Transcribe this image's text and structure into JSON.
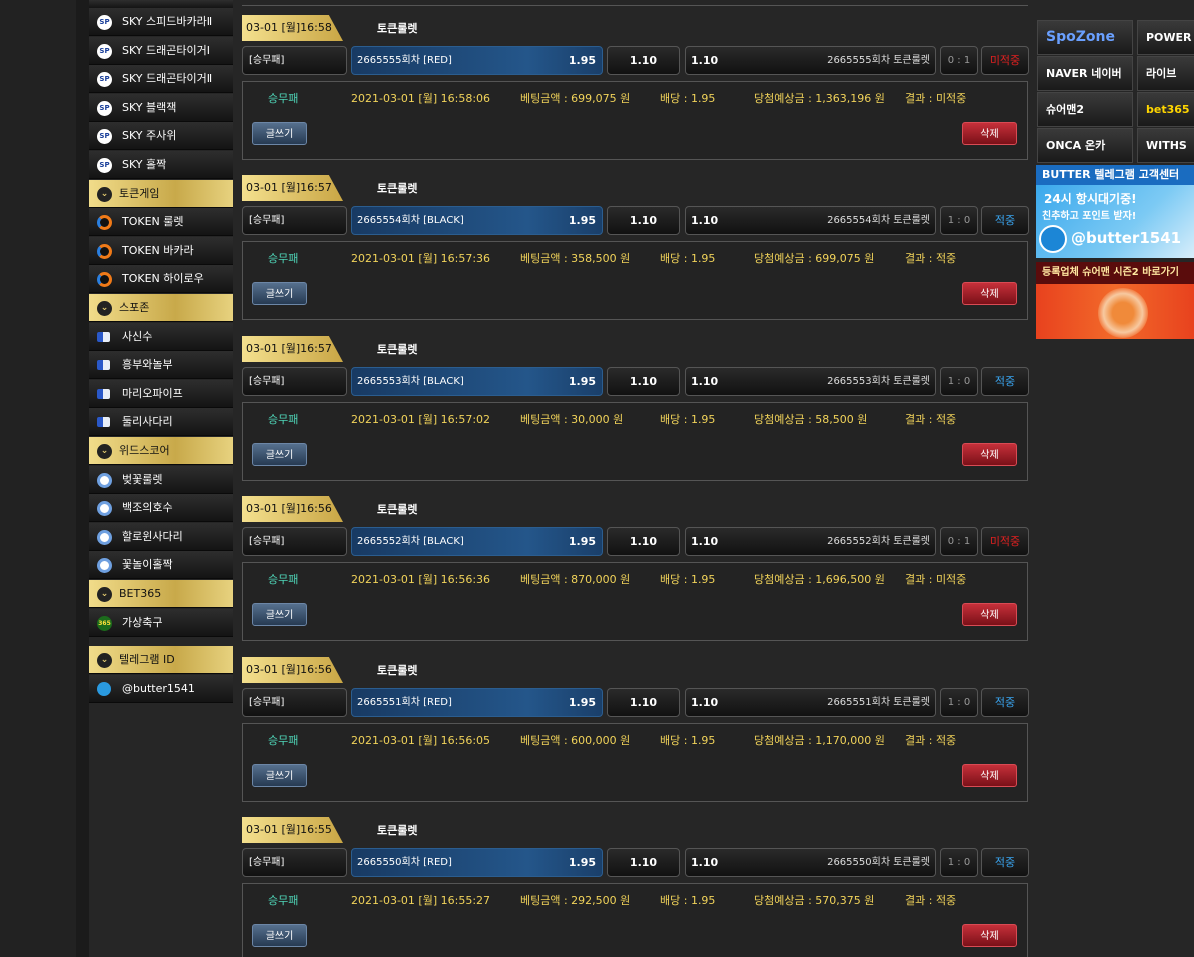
{
  "sidebar": {
    "items": [
      {
        "label": "SKY 스피드바카라Ⅱ",
        "icon": "sp",
        "badge": "SP"
      },
      {
        "label": "SKY 드래곤타이거Ⅰ",
        "icon": "sp",
        "badge": "SP"
      },
      {
        "label": "SKY 드래곤타이거Ⅱ",
        "icon": "sp",
        "badge": "SP"
      },
      {
        "label": "SKY 블랙잭",
        "icon": "sp",
        "badge": "SP"
      },
      {
        "label": "SKY 주사위",
        "icon": "sp",
        "badge": "SP"
      },
      {
        "label": "SKY 홀짝",
        "icon": "sp",
        "badge": "SP"
      },
      {
        "label": "토큰게임",
        "icon": "chev",
        "header": true
      },
      {
        "label": "TOKEN 룰렛",
        "icon": "token"
      },
      {
        "label": "TOKEN 바카라",
        "icon": "token"
      },
      {
        "label": "TOKEN 하이로우",
        "icon": "token"
      },
      {
        "label": "스포존",
        "icon": "chev",
        "header": true
      },
      {
        "label": "사신수",
        "icon": "flag"
      },
      {
        "label": "흥부와놀부",
        "icon": "flag"
      },
      {
        "label": "마리오파이프",
        "icon": "flag"
      },
      {
        "label": "둘리사다리",
        "icon": "flag"
      },
      {
        "label": "위드스코어",
        "icon": "chev",
        "header": true
      },
      {
        "label": "벚꽃룰렛",
        "icon": "w"
      },
      {
        "label": "백조의호수",
        "icon": "w"
      },
      {
        "label": "할로윈사다리",
        "icon": "w"
      },
      {
        "label": "꽃놀이홀짝",
        "icon": "w"
      },
      {
        "label": "BET365",
        "icon": "chev",
        "header": true
      },
      {
        "label": "가상축구",
        "icon": "b365",
        "badge": "365"
      }
    ],
    "telegram": [
      {
        "label": "텔레그램 ID",
        "icon": "chev",
        "header": true
      },
      {
        "label": "@butter1541",
        "icon": "tg"
      }
    ]
  },
  "labels": {
    "write": "글쓰기",
    "delete": "삭제"
  },
  "bets": [
    {
      "time": "03-01 [월]16:58",
      "game": "토큰룰렛",
      "type": "[승무패]",
      "pick": "2665555회차 [RED]",
      "pick_odds": "1.95",
      "mid_odds": "1.10",
      "right_odds": "1.10",
      "round": "2665555회차 토큰룰렛",
      "score": "0 : 1",
      "result": "미적중",
      "hit": false,
      "kind": "승무패",
      "datetime": "2021-03-01 [월] 16:58:06",
      "amount": "베팅금액 : 699,075 원",
      "odds": "배당 : 1.95",
      "expected": "당첨예상금 : 1,363,196 원",
      "result_text": "결과 : 미적중"
    },
    {
      "time": "03-01 [월]16:57",
      "game": "토큰룰렛",
      "type": "[승무패]",
      "pick": "2665554회차 [BLACK]",
      "pick_odds": "1.95",
      "mid_odds": "1.10",
      "right_odds": "1.10",
      "round": "2665554회차 토큰룰렛",
      "score": "1 : 0",
      "result": "적중",
      "hit": true,
      "kind": "승무패",
      "datetime": "2021-03-01 [월] 16:57:36",
      "amount": "베팅금액 : 358,500 원",
      "odds": "배당 : 1.95",
      "expected": "당첨예상금 : 699,075 원",
      "result_text": "결과 : 적중"
    },
    {
      "time": "03-01 [월]16:57",
      "game": "토큰룰렛",
      "type": "[승무패]",
      "pick": "2665553회차 [BLACK]",
      "pick_odds": "1.95",
      "mid_odds": "1.10",
      "right_odds": "1.10",
      "round": "2665553회차 토큰룰렛",
      "score": "1 : 0",
      "result": "적중",
      "hit": true,
      "kind": "승무패",
      "datetime": "2021-03-01 [월] 16:57:02",
      "amount": "베팅금액 : 30,000 원",
      "odds": "배당 : 1.95",
      "expected": "당첨예상금 : 58,500 원",
      "result_text": "결과 : 적중"
    },
    {
      "time": "03-01 [월]16:56",
      "game": "토큰룰렛",
      "type": "[승무패]",
      "pick": "2665552회차 [BLACK]",
      "pick_odds": "1.95",
      "mid_odds": "1.10",
      "right_odds": "1.10",
      "round": "2665552회차 토큰룰렛",
      "score": "0 : 1",
      "result": "미적중",
      "hit": false,
      "kind": "승무패",
      "datetime": "2021-03-01 [월] 16:56:36",
      "amount": "베팅금액 : 870,000 원",
      "odds": "배당 : 1.95",
      "expected": "당첨예상금 : 1,696,500 원",
      "result_text": "결과 : 미적중"
    },
    {
      "time": "03-01 [월]16:56",
      "game": "토큰룰렛",
      "type": "[승무패]",
      "pick": "2665551회차 [RED]",
      "pick_odds": "1.95",
      "mid_odds": "1.10",
      "right_odds": "1.10",
      "round": "2665551회차 토큰룰렛",
      "score": "1 : 0",
      "result": "적중",
      "hit": true,
      "kind": "승무패",
      "datetime": "2021-03-01 [월] 16:56:05",
      "amount": "베팅금액 : 600,000 원",
      "odds": "배당 : 1.95",
      "expected": "당첨예상금 : 1,170,000 원",
      "result_text": "결과 : 적중"
    },
    {
      "time": "03-01 [월]16:55",
      "game": "토큰룰렛",
      "type": "[승무패]",
      "pick": "2665550회차 [RED]",
      "pick_odds": "1.95",
      "mid_odds": "1.10",
      "right_odds": "1.10",
      "round": "2665550회차 토큰룰렛",
      "score": "1 : 0",
      "result": "적중",
      "hit": true,
      "kind": "승무패",
      "datetime": "2021-03-01 [월] 16:55:27",
      "amount": "베팅금액 : 292,500 원",
      "odds": "배당 : 1.95",
      "expected": "당첨예상금 : 570,375 원",
      "result_text": "결과 : 적중"
    }
  ],
  "ads": {
    "logos": [
      "SpoZone",
      "POWER BALL",
      "NAVER 네이버",
      "라이브",
      "슈어맨2",
      "bet365",
      "ONCA 온카",
      "WITHS"
    ],
    "telegram_banner": {
      "title": "BUTTER 텔레그램 고객센터",
      "line1": "24시 항시대기중!",
      "line2": "친추하고 포인트 받자!",
      "handle": "@butter1541"
    },
    "sureman": "등록업체 슈어맨 시즌2 바로가기"
  }
}
